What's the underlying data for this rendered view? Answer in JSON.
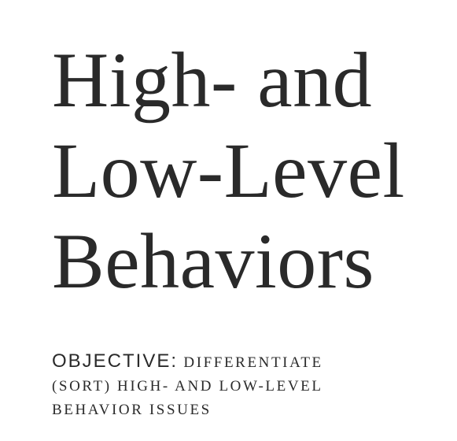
{
  "slide": {
    "title_lines": [
      "High- and",
      "Low-Level",
      "Behaviors"
    ],
    "objective": {
      "label": "OBJECTIVE:",
      "line1": "DIFFERENTIATE",
      "line2": "(SORT) HIGH- AND LOW-LEVEL",
      "line3": "BEHAVIOR ISSUES"
    }
  }
}
